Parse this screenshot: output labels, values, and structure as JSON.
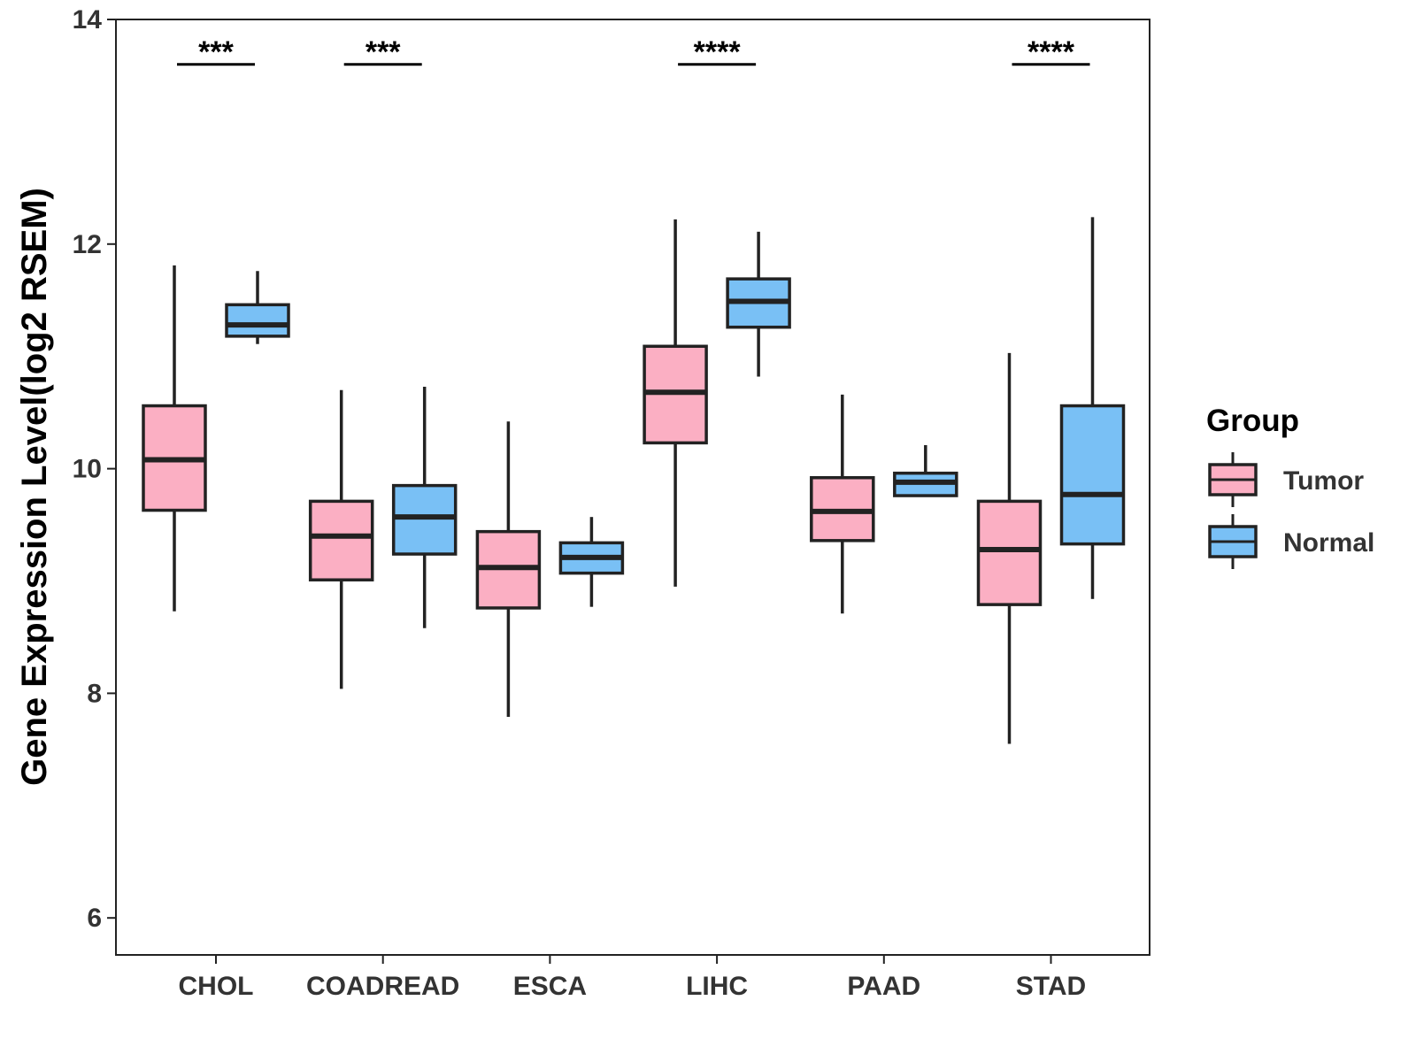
{
  "chart_data": {
    "type": "boxplot",
    "title": "",
    "xlabel": "",
    "ylabel": "Gene Expression Level(log2 RSEM)",
    "ylim": [
      5.65,
      14.0
    ],
    "yticks": [
      6,
      8,
      10,
      12,
      14
    ],
    "ytick_labels": [
      "6",
      "8",
      "10",
      "12",
      "14"
    ],
    "grid": false,
    "categories": [
      "CHOL",
      "COADREAD",
      "ESCA",
      "LIHC",
      "PAAD",
      "STAD"
    ],
    "legend": {
      "title": "Group",
      "position": "right",
      "entries": [
        "Tumor",
        "Normal"
      ]
    },
    "colors": {
      "Tumor": "#FBAFC3",
      "Normal": "#79C0F5",
      "stroke": "#222222",
      "axis": "#222222"
    },
    "series": [
      {
        "name": "Tumor",
        "boxes": [
          {
            "category": "CHOL",
            "min": 8.73,
            "q1": 9.63,
            "median": 10.08,
            "q3": 10.56,
            "max": 11.81
          },
          {
            "category": "COADREAD",
            "min": 8.04,
            "q1": 9.01,
            "median": 9.4,
            "q3": 9.71,
            "max": 10.7
          },
          {
            "category": "ESCA",
            "min": 7.79,
            "q1": 8.76,
            "median": 9.12,
            "q3": 9.44,
            "max": 10.42
          },
          {
            "category": "LIHC",
            "min": 8.95,
            "q1": 10.23,
            "median": 10.68,
            "q3": 11.09,
            "max": 12.22
          },
          {
            "category": "PAAD",
            "min": 8.71,
            "q1": 9.36,
            "median": 9.62,
            "q3": 9.92,
            "max": 10.66
          },
          {
            "category": "STAD",
            "min": 7.55,
            "q1": 8.79,
            "median": 9.28,
            "q3": 9.71,
            "max": 11.03
          }
        ]
      },
      {
        "name": "Normal",
        "boxes": [
          {
            "category": "CHOL",
            "min": 11.11,
            "q1": 11.18,
            "median": 11.28,
            "q3": 11.46,
            "max": 11.76
          },
          {
            "category": "COADREAD",
            "min": 8.58,
            "q1": 9.24,
            "median": 9.57,
            "q3": 9.85,
            "max": 10.73
          },
          {
            "category": "ESCA",
            "min": 8.77,
            "q1": 9.07,
            "median": 9.21,
            "q3": 9.34,
            "max": 9.57
          },
          {
            "category": "LIHC",
            "min": 10.82,
            "q1": 11.26,
            "median": 11.49,
            "q3": 11.69,
            "max": 12.11
          },
          {
            "category": "PAAD",
            "min": 9.76,
            "q1": 9.76,
            "median": 9.88,
            "q3": 9.96,
            "max": 10.21
          },
          {
            "category": "STAD",
            "min": 8.84,
            "q1": 9.33,
            "median": 9.77,
            "q3": 10.56,
            "max": 12.24
          }
        ]
      }
    ],
    "significance": [
      {
        "category": "CHOL",
        "label": "***",
        "y": 13.6
      },
      {
        "category": "COADREAD",
        "label": "***",
        "y": 13.6
      },
      {
        "category": "LIHC",
        "label": "****",
        "y": 13.6
      },
      {
        "category": "STAD",
        "label": "****",
        "y": 13.6
      }
    ]
  }
}
